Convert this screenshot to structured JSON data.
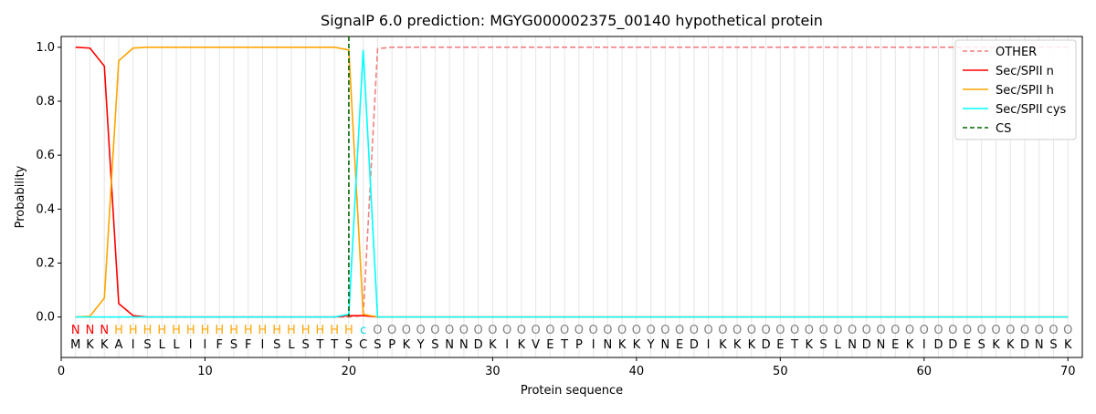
{
  "chart_data": {
    "type": "line",
    "title": "SignalP 6.0 prediction: MGYG000002375_00140 hypothetical protein",
    "xlabel": "Protein sequence",
    "ylabel": "Probability",
    "x": [
      1,
      2,
      3,
      4,
      5,
      6,
      7,
      8,
      9,
      10,
      11,
      12,
      13,
      14,
      15,
      16,
      17,
      18,
      19,
      20,
      21,
      22,
      23,
      24,
      25,
      26,
      27,
      28,
      29,
      30,
      31,
      32,
      33,
      34,
      35,
      36,
      37,
      38,
      39,
      40,
      41,
      42,
      43,
      44,
      45,
      46,
      47,
      48,
      49,
      50,
      51,
      52,
      53,
      54,
      55,
      56,
      57,
      58,
      59,
      60,
      61,
      62,
      63,
      64,
      65,
      66,
      67,
      68,
      69,
      70
    ],
    "residues": [
      "M",
      "K",
      "K",
      "A",
      "I",
      "S",
      "L",
      "L",
      "I",
      "I",
      "F",
      "S",
      "F",
      "I",
      "S",
      "L",
      "S",
      "T",
      "T",
      "S",
      "C",
      "S",
      "P",
      "K",
      "Y",
      "S",
      "N",
      "N",
      "D",
      "K",
      "I",
      "K",
      "V",
      "E",
      "T",
      "P",
      "I",
      "N",
      "K",
      "K",
      "Y",
      "N",
      "E",
      "D",
      "I",
      "K",
      "K",
      "K",
      "D",
      "E",
      "T",
      "K",
      "S",
      "L",
      "N",
      "D",
      "N",
      "E",
      "K",
      "I",
      "D",
      "D",
      "E",
      "S",
      "K",
      "K",
      "D",
      "N",
      "S",
      "K"
    ],
    "labels": [
      "N",
      "N",
      "N",
      "H",
      "H",
      "H",
      "H",
      "H",
      "H",
      "H",
      "H",
      "H",
      "H",
      "H",
      "H",
      "H",
      "H",
      "H",
      "H",
      "H",
      "c",
      "O",
      "O",
      "O",
      "O",
      "O",
      "O",
      "O",
      "O",
      "O",
      "O",
      "O",
      "O",
      "O",
      "O",
      "O",
      "O",
      "O",
      "O",
      "O",
      "O",
      "O",
      "O",
      "O",
      "O",
      "O",
      "O",
      "O",
      "O",
      "O",
      "O",
      "O",
      "O",
      "O",
      "O",
      "O",
      "O",
      "O",
      "O",
      "O",
      "O",
      "O",
      "O",
      "O",
      "O",
      "O",
      "O",
      "O",
      "O",
      "O"
    ],
    "label_colors": {
      "N": "#ff0000",
      "H": "#ffa500",
      "c": "#00d8d8",
      "O": "#808080"
    },
    "series": [
      {
        "name": "OTHER",
        "color": "#f08080",
        "dash": true,
        "values": [
          0,
          0,
          0,
          0,
          0,
          0,
          0,
          0,
          0,
          0,
          0,
          0,
          0,
          0,
          0,
          0,
          0,
          0,
          0,
          0,
          0.005,
          0.995,
          1,
          1,
          1,
          1,
          1,
          1,
          1,
          1,
          1,
          1,
          1,
          1,
          1,
          1,
          1,
          1,
          1,
          1,
          1,
          1,
          1,
          1,
          1,
          1,
          1,
          1,
          1,
          1,
          1,
          1,
          1,
          1,
          1,
          1,
          1,
          1,
          1,
          1,
          1,
          1,
          1,
          1,
          1,
          1,
          1,
          1,
          1,
          1
        ]
      },
      {
        "name": "Sec/SPII n",
        "color": "#ff0000",
        "values": [
          1.0,
          0.997,
          0.93,
          0.05,
          0.005,
          0,
          0,
          0,
          0,
          0,
          0,
          0,
          0,
          0,
          0,
          0,
          0,
          0,
          0,
          0.005,
          0.005,
          0,
          0,
          0,
          0,
          0,
          0,
          0,
          0,
          0,
          0,
          0,
          0,
          0,
          0,
          0,
          0,
          0,
          0,
          0,
          0,
          0,
          0,
          0,
          0,
          0,
          0,
          0,
          0,
          0,
          0,
          0,
          0,
          0,
          0,
          0,
          0,
          0,
          0,
          0,
          0,
          0,
          0,
          0,
          0,
          0,
          0,
          0,
          0,
          0
        ]
      },
      {
        "name": "Sec/SPII h",
        "color": "#ffa500",
        "values": [
          0,
          0.003,
          0.07,
          0.95,
          0.997,
          1,
          1,
          1,
          1,
          1,
          1,
          1,
          1,
          1,
          1,
          1,
          1,
          1,
          1,
          0.99,
          0.01,
          0,
          0,
          0,
          0,
          0,
          0,
          0,
          0,
          0,
          0,
          0,
          0,
          0,
          0,
          0,
          0,
          0,
          0,
          0,
          0,
          0,
          0,
          0,
          0,
          0,
          0,
          0,
          0,
          0,
          0,
          0,
          0,
          0,
          0,
          0,
          0,
          0,
          0,
          0,
          0,
          0,
          0,
          0,
          0,
          0,
          0,
          0,
          0,
          0
        ]
      },
      {
        "name": "Sec/SPII cys",
        "color": "#00ffff",
        "values": [
          0,
          0,
          0,
          0,
          0,
          0,
          0,
          0,
          0,
          0,
          0,
          0,
          0,
          0,
          0,
          0,
          0,
          0,
          0,
          0.01,
          0.99,
          0,
          0,
          0,
          0,
          0,
          0,
          0,
          0,
          0,
          0,
          0,
          0,
          0,
          0,
          0,
          0,
          0,
          0,
          0,
          0,
          0,
          0,
          0,
          0,
          0,
          0,
          0,
          0,
          0,
          0,
          0,
          0,
          0,
          0,
          0,
          0,
          0,
          0,
          0,
          0,
          0,
          0,
          0,
          0,
          0,
          0,
          0,
          0,
          0
        ]
      }
    ],
    "cs": {
      "name": "CS",
      "x": 20,
      "color": "#006400"
    },
    "xlim": [
      0,
      71
    ],
    "ylim": [
      -0.15,
      1.04
    ],
    "xticks": [
      0,
      10,
      20,
      30,
      40,
      50,
      60,
      70
    ],
    "yticks": [
      {
        "value": 0,
        "label": "0.0"
      },
      {
        "value": 0.2,
        "label": "0.2"
      },
      {
        "value": 0.4,
        "label": "0.4"
      },
      {
        "value": 0.6,
        "label": "0.6"
      },
      {
        "value": 0.8,
        "label": "0.8"
      },
      {
        "value": 1,
        "label": "1.0"
      }
    ],
    "legend": "upper right"
  }
}
